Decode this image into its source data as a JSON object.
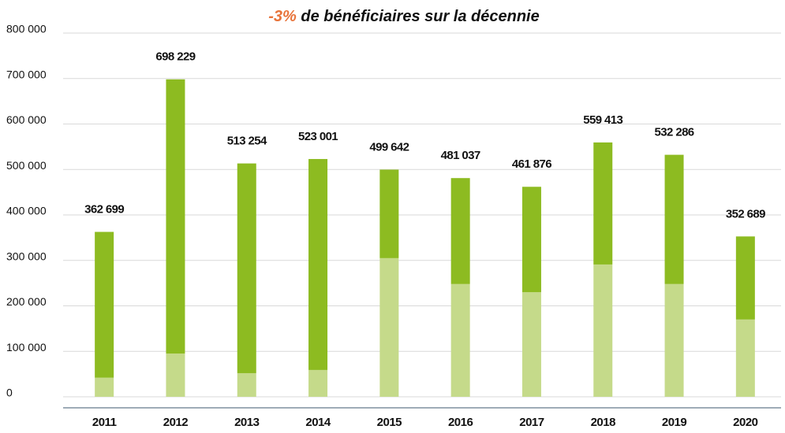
{
  "chart_data": {
    "type": "stacked_bar",
    "title_highlight": "-3%",
    "title": " de bénéficiaires sur la décennie",
    "categories": [
      "2011",
      "2012",
      "2013",
      "2014",
      "2015",
      "2016",
      "2017",
      "2018",
      "2019",
      "2020"
    ],
    "series": [
      {
        "color": "#c5da8a",
        "values": [
          42000,
          95000,
          52000,
          59000,
          305000,
          248000,
          230000,
          291000,
          248000,
          170000
        ]
      },
      {
        "color": "#8dbb21",
        "values": [
          320699,
          603229,
          461254,
          464001,
          194642,
          233037,
          231876,
          268413,
          284286,
          182689
        ]
      }
    ],
    "totals": [
      362699,
      698229,
      513254,
      523001,
      499642,
      481037,
      461876,
      559413,
      532286,
      352689
    ],
    "total_labels": [
      "362 699",
      "698 229",
      "513 254",
      "523 001",
      "499 642",
      "481 037",
      "461 876",
      "559 413",
      "532 286",
      "352 689"
    ],
    "ylim": [
      0,
      800000
    ],
    "yticks": [
      0,
      {
        "value": 100000,
        "label": "100 000"
      },
      {
        "value": 200000,
        "label": "200 000"
      },
      {
        "value": 300000,
        "label": "300 000"
      },
      {
        "value": 400000,
        "label": "400 000"
      },
      {
        "value": 500000,
        "label": "500 000"
      },
      {
        "value": 600000,
        "label": "600 000"
      },
      {
        "value": 700000,
        "label": "700 000"
      },
      {
        "value": 800000,
        "label": "800 000"
      }
    ],
    "grid": true
  }
}
